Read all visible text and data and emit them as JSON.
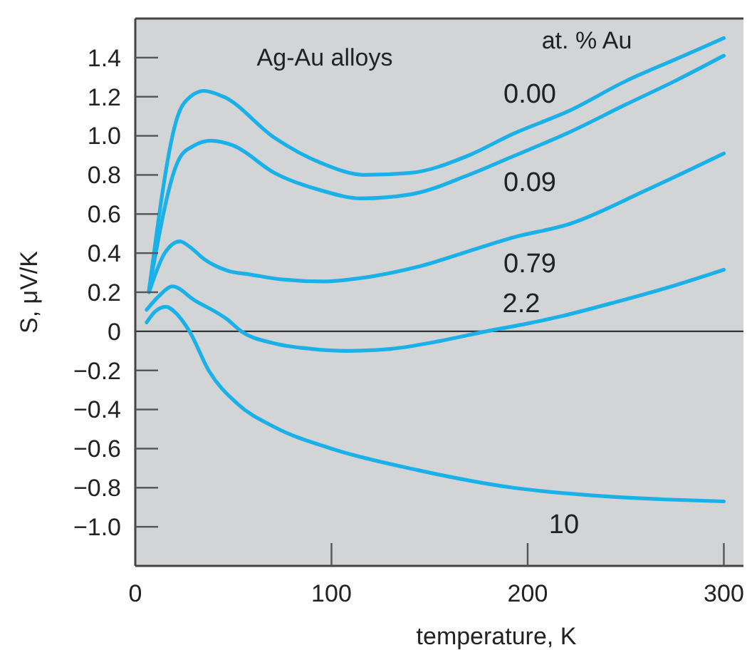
{
  "chart_data": {
    "type": "line",
    "xlabel": "temperature, K",
    "ylabel": "S, μV/K",
    "legend_title": "at. % Au",
    "annotations": [
      "Ag-Au alloys"
    ],
    "grid": false,
    "marker": "none",
    "line_style": "solid",
    "xlim": [
      0,
      310
    ],
    "xticks": [
      0,
      100,
      200,
      300
    ],
    "ylim": [
      -1.2,
      1.6
    ],
    "yticks": [
      {
        "value": -1.0,
        "label": "−1.0"
      },
      {
        "value": -0.8,
        "label": "−0.8"
      },
      {
        "value": -0.6,
        "label": "−0.6"
      },
      {
        "value": -0.4,
        "label": "−0.4"
      },
      {
        "value": -0.2,
        "label": "−0.2"
      },
      0,
      0.2,
      0.4,
      0.6,
      0.8,
      {
        "value": 1.0,
        "label": "1.0"
      },
      1.2,
      1.4
    ],
    "ref_lines": [
      {
        "axis": "y",
        "value": 0,
        "color": "#333333"
      }
    ],
    "series": [
      {
        "name": "0.00",
        "color": "#1ab0e8",
        "x": [
          7,
          21.6,
          28,
          35,
          45,
          71,
          95,
          117,
          140,
          170,
          192.5,
          221.6,
          250,
          275,
          300
        ],
        "values": [
          0.21,
          1.1,
          1.2,
          1.23,
          1.2,
          0.99,
          0.86,
          0.8,
          0.81,
          0.9,
          1.01,
          1.13,
          1.28,
          1.39,
          1.5
        ]
      },
      {
        "name": "0.09",
        "color": "#1ab0e8",
        "x": [
          7,
          22.8,
          30,
          38.5,
          50,
          71,
          95,
          115,
          140,
          170,
          192.5,
          221.6,
          250,
          275,
          300
        ],
        "values": [
          0.21,
          0.89,
          0.95,
          0.975,
          0.95,
          0.81,
          0.72,
          0.68,
          0.7,
          0.8,
          0.895,
          1.02,
          1.16,
          1.28,
          1.41
        ]
      },
      {
        "name": "0.79",
        "color": "#1ab0e8",
        "x": [
          7,
          15,
          22.8,
          28,
          35,
          47,
          59,
          75,
          95.6,
          120,
          144,
          170,
          192.5,
          221.6,
          260,
          300
        ],
        "values": [
          0.2,
          0.4,
          0.46,
          0.43,
          0.37,
          0.31,
          0.29,
          0.265,
          0.255,
          0.28,
          0.33,
          0.41,
          0.48,
          0.55,
          0.72,
          0.91
        ]
      },
      {
        "name": "2.2",
        "color": "#1ab0e8",
        "x": [
          5.8,
          12,
          19,
          30,
          47,
          54,
          70,
          90,
          108,
          130,
          155,
          179,
          200,
          217,
          245,
          275,
          300
        ],
        "values": [
          0.11,
          0.18,
          0.23,
          0.16,
          0.06,
          0.0,
          -0.06,
          -0.09,
          -0.1,
          -0.09,
          -0.05,
          0.0,
          0.04,
          0.077,
          0.15,
          0.235,
          0.315
        ]
      },
      {
        "name": "10",
        "color": "#1ab0e8",
        "x": [
          5.8,
          10,
          15.6,
          21,
          27.6,
          37.4,
          52,
          71,
          100,
          144,
          192.5,
          241,
          270,
          300
        ],
        "values": [
          0.046,
          0.1,
          0.126,
          0.09,
          0.0,
          -0.2,
          -0.37,
          -0.49,
          -0.6,
          -0.71,
          -0.8,
          -0.845,
          -0.86,
          -0.87
        ]
      }
    ]
  }
}
